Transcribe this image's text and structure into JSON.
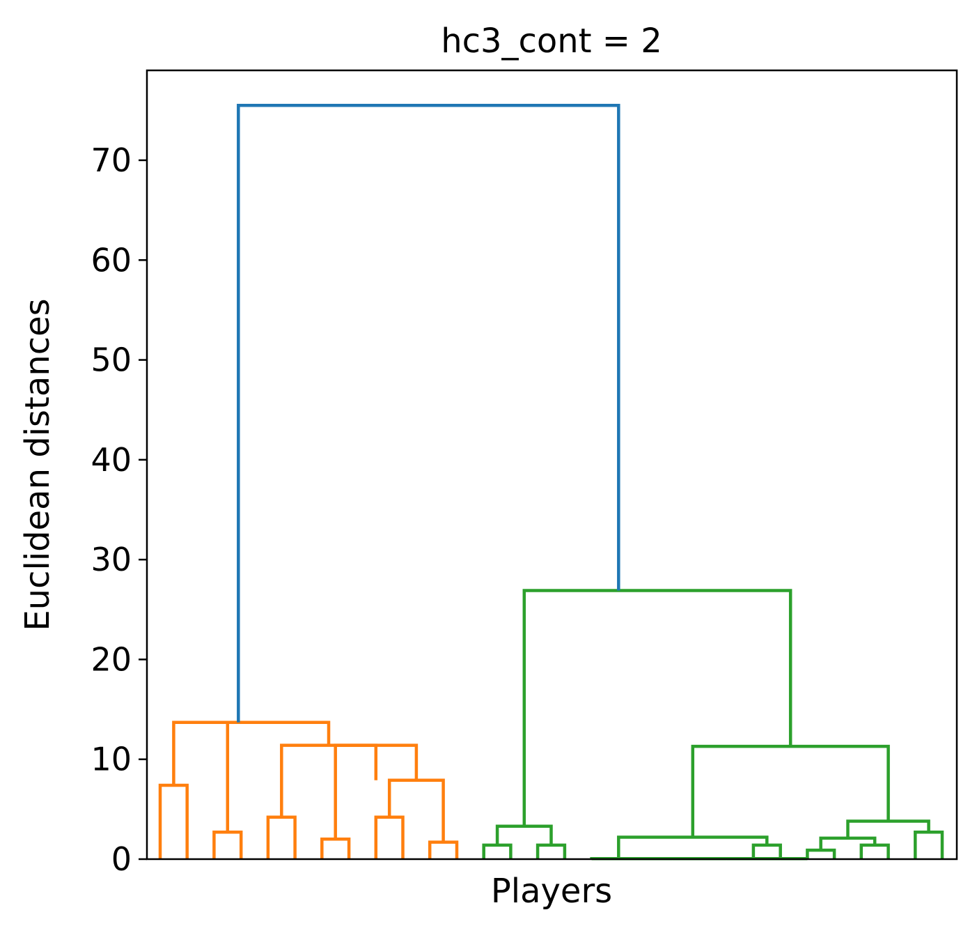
{
  "chart_data": {
    "type": "dendrogram",
    "title": "hc3_cont = 2",
    "xlabel": "Players",
    "ylabel": "Euclidean distances",
    "ylim": [
      0,
      79
    ],
    "yticks": [
      0,
      10,
      20,
      30,
      40,
      50,
      60,
      70
    ],
    "grid": false,
    "legend": "none",
    "leaf_count": 30,
    "colors": {
      "cluster_1": "#ff7f0e",
      "cluster_2": "#2ca02c",
      "root": "#1f77b4"
    },
    "links": [
      {
        "x": [
          0.5,
          0.5,
          1.5,
          1.5
        ],
        "y": [
          0,
          7.4,
          7.4,
          0
        ],
        "color": "cluster_1"
      },
      {
        "x": [
          2.5,
          2.5,
          3.5,
          3.5
        ],
        "y": [
          0,
          2.7,
          2.7,
          0
        ],
        "color": "cluster_1"
      },
      {
        "x": [
          1.0,
          1.0,
          3.0,
          3.0
        ],
        "y": [
          7.4,
          13.7,
          13.7,
          2.7
        ],
        "color": "cluster_1"
      },
      {
        "x": [
          4.5,
          4.5,
          5.5,
          5.5
        ],
        "y": [
          0,
          4.2,
          4.2,
          0
        ],
        "color": "cluster_1"
      },
      {
        "x": [
          6.5,
          6.5,
          7.5,
          7.5
        ],
        "y": [
          0,
          2.0,
          2.0,
          0
        ],
        "color": "cluster_1"
      },
      {
        "x": [
          8.5,
          8.5,
          9.5,
          9.5
        ],
        "y": [
          0,
          4.2,
          4.2,
          0
        ],
        "color": "cluster_1"
      },
      {
        "x": [
          10.5,
          10.5,
          11.5,
          11.5
        ],
        "y": [
          0,
          1.7,
          1.7,
          0
        ],
        "color": "cluster_1"
      },
      {
        "x": [
          9.0,
          9.0,
          11.0,
          11.0
        ],
        "y": [
          4.2,
          7.9,
          7.9,
          1.7
        ],
        "color": "cluster_1"
      },
      {
        "x": [
          7.0,
          7.0,
          10.0,
          10.0
        ],
        "y": [
          2.0,
          11.4,
          11.4,
          7.9
        ],
        "color": "cluster_1"
      },
      {
        "x": [
          5.0,
          5.0,
          8.5,
          8.5
        ],
        "y": [
          4.2,
          11.4,
          11.4,
          7.9
        ],
        "color": "cluster_1"
      },
      {
        "x": [
          2.0,
          2.0,
          6.75,
          6.75
        ],
        "y": [
          13.7,
          13.7,
          13.7,
          11.4
        ],
        "color": "cluster_1"
      },
      {
        "x": [
          12.5,
          12.5,
          13.5,
          13.5
        ],
        "y": [
          0,
          1.4,
          1.4,
          0
        ],
        "color": "cluster_2"
      },
      {
        "x": [
          14.5,
          14.5,
          15.5,
          15.5
        ],
        "y": [
          0,
          1.4,
          1.4,
          0
        ],
        "color": "cluster_2"
      },
      {
        "x": [
          13.0,
          13.0,
          15.0,
          15.0
        ],
        "y": [
          1.4,
          3.3,
          3.3,
          1.4
        ],
        "color": "cluster_2"
      },
      {
        "x": [
          16.5,
          16.5,
          17.5,
          17.5
        ],
        "y": [
          0,
          0.05,
          0.05,
          0
        ],
        "color": "cluster_2"
      },
      {
        "x": [
          17.0,
          17.0,
          18.5,
          18.5
        ],
        "y": [
          0.05,
          0.05,
          0.05,
          0
        ],
        "color": "cluster_2"
      },
      {
        "x": [
          18.5,
          18.5,
          19.5,
          19.5
        ],
        "y": [
          0,
          0.05,
          0.05,
          0
        ],
        "color": "cluster_2"
      },
      {
        "x": [
          19.5,
          19.5,
          20.5,
          20.5
        ],
        "y": [
          0,
          0.05,
          0.05,
          0
        ],
        "color": "cluster_2"
      },
      {
        "x": [
          20.5,
          20.5,
          21.5,
          21.5
        ],
        "y": [
          0,
          0.05,
          0.05,
          0
        ],
        "color": "cluster_2"
      },
      {
        "x": [
          21.5,
          21.5,
          22.5,
          22.5
        ],
        "y": [
          0,
          0.05,
          0.05,
          0
        ],
        "color": "cluster_2"
      },
      {
        "x": [
          22.5,
          22.5,
          23.5,
          23.5
        ],
        "y": [
          0,
          0.05,
          0.05,
          0
        ],
        "color": "cluster_2"
      },
      {
        "x": [
          23.5,
          23.5,
          24.5,
          24.5
        ],
        "y": [
          0,
          0.05,
          0.05,
          0
        ],
        "color": "cluster_2"
      },
      {
        "x": [
          22.5,
          22.5,
          23.5,
          23.5
        ],
        "y": [
          0,
          1.4,
          1.4,
          0
        ],
        "color": "cluster_2"
      },
      {
        "x": [
          17.5,
          17.5,
          23.0,
          23.0
        ],
        "y": [
          0.05,
          2.2,
          2.2,
          1.4
        ],
        "color": "cluster_2"
      },
      {
        "x": [
          24.5,
          24.5,
          25.5,
          25.5
        ],
        "y": [
          0,
          0.9,
          0.9,
          0
        ],
        "color": "cluster_2"
      },
      {
        "x": [
          26.5,
          26.5,
          27.5,
          27.5
        ],
        "y": [
          0,
          1.4,
          1.4,
          0
        ],
        "color": "cluster_2"
      },
      {
        "x": [
          25.0,
          25.0,
          27.0,
          27.0
        ],
        "y": [
          0.9,
          2.1,
          2.1,
          1.4
        ],
        "color": "cluster_2"
      },
      {
        "x": [
          28.5,
          28.5,
          29.5,
          29.5
        ],
        "y": [
          0,
          2.7,
          2.7,
          0
        ],
        "color": "cluster_2"
      },
      {
        "x": [
          26.0,
          26.0,
          29.0,
          29.0
        ],
        "y": [
          2.1,
          3.8,
          3.8,
          2.7
        ],
        "color": "cluster_2"
      },
      {
        "x": [
          20.25,
          20.25,
          27.5,
          27.5
        ],
        "y": [
          2.2,
          11.3,
          11.3,
          3.8
        ],
        "color": "cluster_2"
      },
      {
        "x": [
          14.0,
          14.0,
          23.875,
          23.875
        ],
        "y": [
          3.3,
          26.9,
          26.9,
          11.3
        ],
        "color": "cluster_2"
      },
      {
        "x": [
          3.4,
          3.4,
          17.5,
          17.5
        ],
        "y": [
          13.7,
          75.5,
          75.5,
          26.9
        ],
        "color": "root"
      }
    ]
  }
}
